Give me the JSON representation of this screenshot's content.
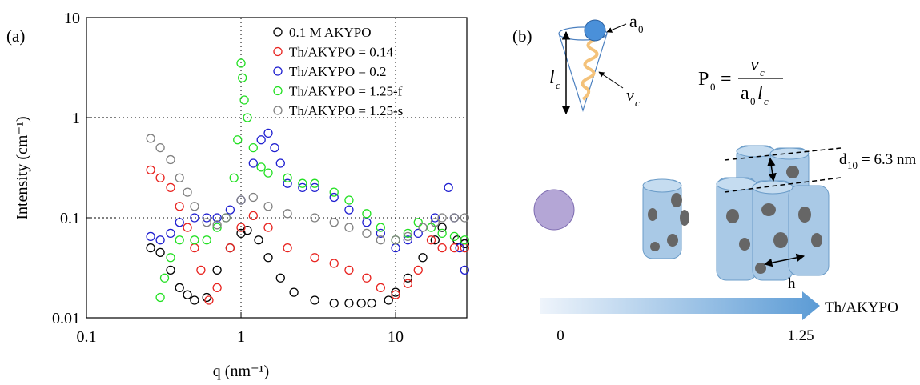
{
  "chart_data": {
    "type": "scatter",
    "panel_label": "(a)",
    "x_label": "q (nm⁻¹)",
    "y_label": "Intensity (cm⁻¹)",
    "xlim": [
      0.1,
      28.9
    ],
    "ylim": [
      0.01,
      10
    ],
    "xticks": [
      0.1,
      1,
      10
    ],
    "yticks": [
      0.01,
      0.1,
      1,
      10
    ],
    "log_x": true,
    "log_y": true,
    "grid": true,
    "legend": "upper right",
    "series": [
      {
        "name": "0.1 M AKYPO",
        "color": "#000000",
        "x": [
          0.26,
          0.3,
          0.35,
          0.4,
          0.45,
          0.5,
          0.6,
          0.7,
          0.85,
          1.0,
          1.1,
          1.3,
          1.5,
          1.8,
          2.2,
          3,
          4,
          5,
          6,
          7,
          9,
          10,
          12,
          15,
          18,
          20,
          25,
          28
        ],
        "values": [
          0.05,
          0.045,
          0.03,
          0.02,
          0.017,
          0.015,
          0.016,
          0.03,
          0.05,
          0.07,
          0.075,
          0.06,
          0.04,
          0.025,
          0.018,
          0.015,
          0.014,
          0.014,
          0.014,
          0.014,
          0.015,
          0.018,
          0.025,
          0.04,
          0.06,
          0.08,
          0.06,
          0.055
        ]
      },
      {
        "name": "Th/AKYPO = 0.14",
        "color": "#e8231f",
        "x": [
          0.26,
          0.3,
          0.35,
          0.4,
          0.45,
          0.5,
          0.55,
          0.62,
          0.7,
          0.85,
          1.0,
          1.2,
          1.5,
          2,
          3,
          4,
          5,
          6.5,
          8,
          10,
          12,
          14,
          17,
          20,
          24,
          28
        ],
        "values": [
          0.3,
          0.25,
          0.2,
          0.13,
          0.08,
          0.05,
          0.03,
          0.015,
          0.02,
          0.05,
          0.08,
          0.105,
          0.08,
          0.05,
          0.04,
          0.035,
          0.03,
          0.025,
          0.02,
          0.017,
          0.022,
          0.03,
          0.06,
          0.05,
          0.05,
          0.05
        ]
      },
      {
        "name": "Th/AKYPO = 0.2",
        "color": "#1f1fd0",
        "x": [
          0.26,
          0.3,
          0.35,
          0.4,
          0.5,
          0.6,
          0.7,
          0.85,
          1.0,
          1.2,
          1.35,
          1.5,
          1.65,
          1.8,
          2,
          2.5,
          3,
          4,
          5,
          6.5,
          8,
          10,
          12,
          14,
          18,
          22,
          24,
          26,
          28
        ],
        "values": [
          0.065,
          0.06,
          0.07,
          0.09,
          0.1,
          0.1,
          0.1,
          0.12,
          0.15,
          0.35,
          0.6,
          0.7,
          0.5,
          0.35,
          0.22,
          0.2,
          0.2,
          0.16,
          0.12,
          0.09,
          0.07,
          0.05,
          0.06,
          0.07,
          0.1,
          0.2,
          0.1,
          0.05,
          0.03
        ]
      },
      {
        "name": "Th/AKYPO = 1.25-f",
        "color": "#22e022",
        "x": [
          0.3,
          0.32,
          0.35,
          0.4,
          0.5,
          0.6,
          0.7,
          0.8,
          0.9,
          0.95,
          1.0,
          1.02,
          1.05,
          1.1,
          1.2,
          1.35,
          1.5,
          2,
          2.5,
          3,
          4,
          5,
          6.5,
          8,
          10,
          12,
          14,
          17,
          20,
          24,
          28
        ],
        "values": [
          0.016,
          0.025,
          0.04,
          0.06,
          0.06,
          0.06,
          0.08,
          0.1,
          0.25,
          0.6,
          3.5,
          2.5,
          1.5,
          1.0,
          0.5,
          0.32,
          0.28,
          0.25,
          0.22,
          0.22,
          0.18,
          0.15,
          0.11,
          0.08,
          0.06,
          0.07,
          0.09,
          0.08,
          0.07,
          0.065,
          0.06
        ]
      },
      {
        "name": "Th/AKYPO = 1.25-s",
        "color": "#808080",
        "x": [
          0.26,
          0.3,
          0.35,
          0.4,
          0.45,
          0.5,
          0.6,
          0.7,
          0.8,
          1.0,
          1.2,
          1.5,
          2,
          3,
          4,
          5,
          6.5,
          8,
          10,
          12,
          15,
          18,
          20,
          24,
          28
        ],
        "values": [
          0.62,
          0.5,
          0.38,
          0.25,
          0.18,
          0.13,
          0.09,
          0.085,
          0.1,
          0.15,
          0.16,
          0.13,
          0.11,
          0.1,
          0.09,
          0.08,
          0.07,
          0.06,
          0.06,
          0.065,
          0.08,
          0.09,
          0.1,
          0.1,
          0.1
        ]
      }
    ]
  },
  "diagram": {
    "panel_label": "(b)",
    "head": {
      "main": "a",
      "sub": "0"
    },
    "length": {
      "main": "l",
      "sub": "c"
    },
    "volume": {
      "main": "v",
      "sub": "c"
    },
    "formula": {
      "lhs": "P",
      "lhs_sub": "0",
      "equals": "=",
      "num": "v",
      "num_sub": "c",
      "den_a": "a",
      "den_a_sub": "0",
      "den_l": "l",
      "den_l_sub": "c"
    },
    "spacing": {
      "main": "d",
      "sub": "10",
      "rest": "= 6.3 nm"
    },
    "height": "h",
    "axis_label": "Th/AKYPO",
    "start": "0",
    "end": "1.25"
  }
}
